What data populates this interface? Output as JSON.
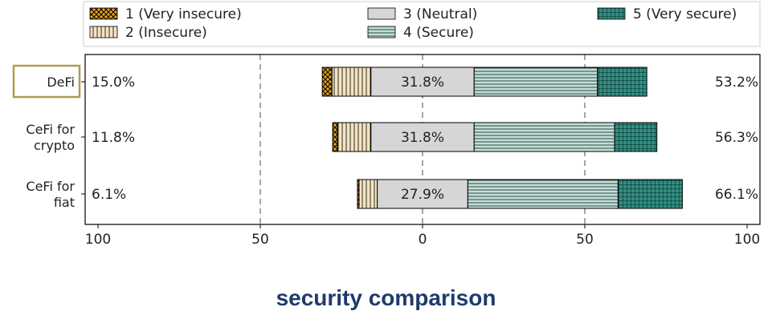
{
  "chart_data": {
    "type": "bar",
    "orientation": "horizontal-diverging-stacked",
    "categories": [
      "DeFi",
      "CeFi for crypto",
      "CeFi for fiat"
    ],
    "category_lines": [
      [
        "DeFi"
      ],
      [
        "CeFi for",
        "crypto"
      ],
      [
        "CeFi for",
        "fiat"
      ]
    ],
    "highlighted_category": "DeFi",
    "series": [
      {
        "name": "1 (Very insecure)",
        "values": [
          3.0,
          1.5,
          0.5
        ],
        "color": "#e0a020"
      },
      {
        "name": "2 (Insecure)",
        "values": [
          12.0,
          10.3,
          5.6
        ],
        "color": "#f3e3c0"
      },
      {
        "name": "3 (Neutral)",
        "values": [
          31.8,
          31.8,
          27.9
        ],
        "color": "#d6d6d6"
      },
      {
        "name": "4 (Secure)",
        "values": [
          38.0,
          43.3,
          46.3
        ],
        "color": "#bfe0d9"
      },
      {
        "name": "5 (Very secure)",
        "values": [
          15.2,
          13.0,
          19.8
        ],
        "color": "#2e8f82"
      }
    ],
    "left_labels": [
      "15.0%",
      "11.8%",
      "6.1%"
    ],
    "neutral_labels": [
      "31.8%",
      "31.8%",
      "27.9%"
    ],
    "right_labels": [
      "53.2%",
      "56.3%",
      "66.1%"
    ],
    "xlim": [
      -100,
      100
    ],
    "xticks": [
      -100,
      -50,
      0,
      50,
      100
    ],
    "xtick_labels": [
      "100",
      "50",
      "0",
      "50",
      "100"
    ],
    "grid": "vertical dashed at -50, 0, 50",
    "legend_position": "top"
  },
  "caption": "security comparison"
}
